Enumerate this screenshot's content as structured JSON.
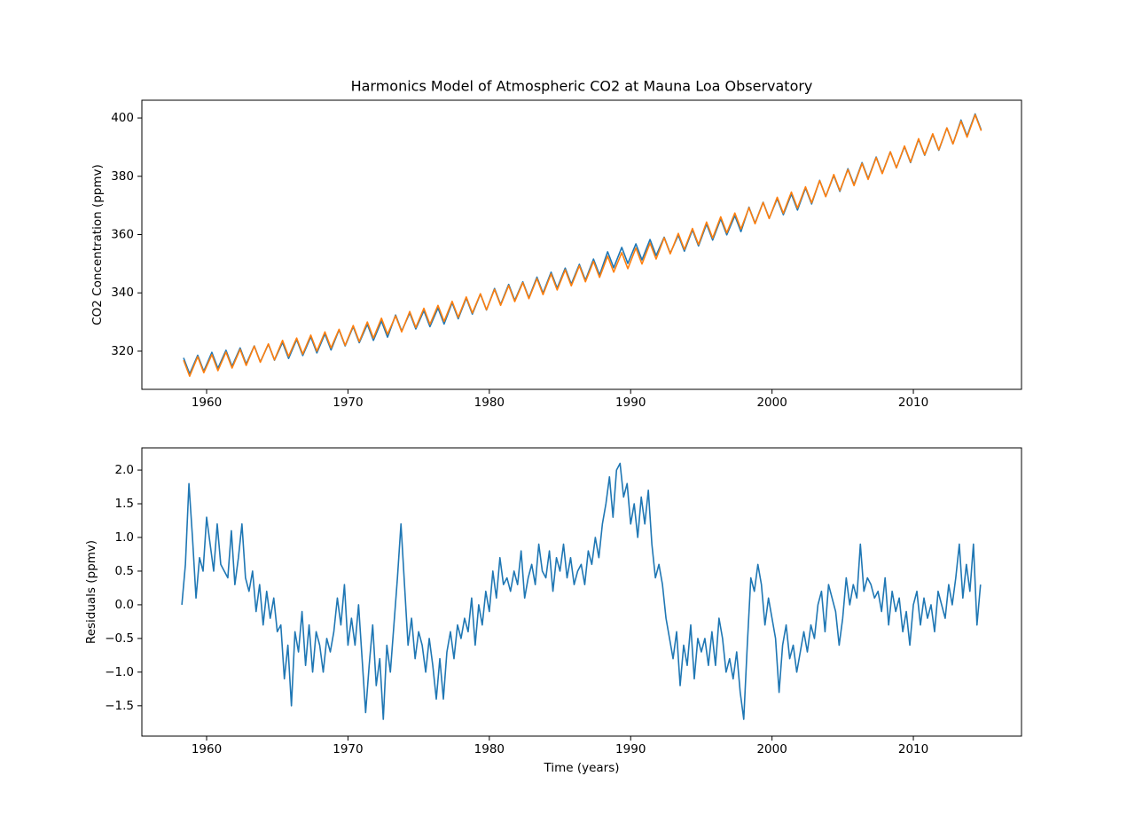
{
  "chart_data": [
    {
      "type": "line",
      "title": "Harmonics Model of Atmospheric CO2 at Mauna Loa Observatory",
      "ylabel": "CO2 Concentration (ppmv)",
      "x": [
        1958.37,
        1958.8,
        1959.37,
        1959.8,
        1960.37,
        1960.8,
        1961.37,
        1961.8,
        1962.37,
        1962.8,
        1963.37,
        1963.8,
        1964.37,
        1964.8,
        1965.37,
        1965.8,
        1966.37,
        1966.8,
        1967.37,
        1967.8,
        1968.37,
        1968.8,
        1969.37,
        1969.8,
        1970.37,
        1970.8,
        1971.37,
        1971.8,
        1972.37,
        1972.8,
        1973.37,
        1973.8,
        1974.37,
        1974.8,
        1975.37,
        1975.8,
        1976.37,
        1976.8,
        1977.37,
        1977.8,
        1978.37,
        1978.8,
        1979.37,
        1979.8,
        1980.37,
        1980.8,
        1981.37,
        1981.8,
        1982.37,
        1982.8,
        1983.37,
        1983.8,
        1984.37,
        1984.8,
        1985.37,
        1985.8,
        1986.37,
        1986.8,
        1987.37,
        1987.8,
        1988.37,
        1988.8,
        1989.37,
        1989.8,
        1990.37,
        1990.8,
        1991.37,
        1991.8,
        1992.37,
        1992.8,
        1993.37,
        1993.8,
        1994.37,
        1994.8,
        1995.37,
        1995.8,
        1996.37,
        1996.8,
        1997.37,
        1997.8,
        1998.37,
        1998.8,
        1999.37,
        1999.8,
        2000.37,
        2000.8,
        2001.37,
        2001.8,
        2002.37,
        2002.8,
        2003.37,
        2003.8,
        2004.37,
        2004.8,
        2005.37,
        2005.8,
        2006.37,
        2006.8,
        2007.37,
        2007.8,
        2008.37,
        2008.8,
        2009.37,
        2009.8,
        2010.37,
        2010.8,
        2011.37,
        2011.8,
        2012.37,
        2012.8,
        2013.37,
        2013.8,
        2014.37,
        2014.8
      ],
      "series": [
        {
          "color": "#1f77b4",
          "values": [
            317.7,
            312.2,
            318.6,
            313.1,
            319.6,
            314.1,
            320.3,
            314.8,
            321.1,
            315.6,
            321.8,
            316.3,
            322.4,
            316.9,
            323.0,
            317.5,
            324.0,
            318.5,
            324.9,
            319.4,
            325.9,
            320.4,
            327.3,
            321.8,
            328.4,
            322.9,
            329.2,
            323.7,
            330.3,
            324.8,
            332.4,
            326.9,
            333.1,
            327.6,
            333.9,
            328.4,
            334.8,
            329.3,
            336.6,
            331.1,
            338.2,
            332.7,
            339.6,
            334.1,
            341.5,
            336.0,
            342.9,
            337.4,
            343.8,
            338.3,
            345.4,
            339.9,
            347.1,
            341.6,
            348.5,
            343.0,
            349.8,
            344.3,
            351.6,
            346.1,
            354.1,
            348.6,
            355.6,
            350.1,
            356.8,
            351.3,
            358.3,
            352.8,
            359.1,
            353.6,
            359.8,
            354.3,
            361.6,
            356.1,
            363.6,
            358.1,
            365.4,
            359.9,
            366.5,
            361.0,
            369.4,
            363.9,
            371.1,
            365.6,
            372.3,
            366.8,
            373.9,
            368.4,
            376.0,
            370.5,
            378.6,
            373.1,
            380.3,
            374.8,
            382.6,
            377.1,
            384.7,
            379.2,
            386.6,
            381.1,
            388.4,
            382.9,
            390.2,
            384.7,
            392.7,
            387.2,
            394.4,
            388.9,
            396.6,
            391.1,
            399.3,
            393.8,
            401.4,
            395.9
          ]
        },
        {
          "color": "#ff7f0e",
          "values": [
            316.9,
            311.4,
            318.1,
            312.6,
            318.8,
            313.3,
            319.7,
            314.2,
            320.6,
            315.1,
            321.7,
            316.2,
            322.5,
            317.0,
            323.7,
            318.2,
            324.5,
            319.0,
            325.5,
            320.0,
            326.6,
            321.1,
            327.5,
            322.0,
            328.8,
            323.3,
            330.0,
            324.5,
            331.3,
            325.8,
            332.1,
            326.6,
            333.6,
            328.1,
            334.7,
            329.2,
            335.7,
            330.2,
            337.1,
            331.6,
            338.6,
            333.1,
            339.7,
            334.2,
            341.2,
            335.7,
            342.5,
            337.0,
            343.5,
            338.0,
            344.9,
            339.4,
            346.5,
            341.0,
            347.9,
            342.4,
            349.3,
            343.8,
            350.8,
            345.3,
            352.6,
            347.1,
            353.8,
            348.3,
            355.4,
            349.9,
            357.1,
            351.6,
            358.9,
            353.4,
            360.4,
            354.9,
            362.1,
            356.6,
            364.3,
            358.8,
            366.1,
            360.6,
            367.4,
            361.9,
            369.2,
            363.7,
            371.0,
            365.5,
            372.8,
            367.3,
            374.6,
            369.1,
            376.4,
            370.9,
            378.5,
            373.0,
            380.6,
            375.1,
            382.3,
            376.8,
            384.4,
            378.9,
            386.4,
            380.9,
            388.4,
            382.9,
            390.4,
            384.9,
            392.9,
            387.4,
            394.6,
            389.1,
            396.6,
            391.1,
            398.9,
            393.4,
            401.1,
            395.6
          ]
        }
      ],
      "xlim": [
        1955.42,
        2017.65
      ],
      "xticks": [
        1960,
        1970,
        1980,
        1990,
        2000,
        2010
      ],
      "ylim": [
        306.9,
        406.1
      ],
      "yticks": [
        320,
        340,
        360,
        380,
        400
      ]
    },
    {
      "type": "line",
      "xlabel": "Time (years)",
      "ylabel": "Residuals (ppmv)",
      "x": [
        1958.25,
        1958.5,
        1958.75,
        1959.0,
        1959.25,
        1959.5,
        1959.75,
        1960.0,
        1960.25,
        1960.5,
        1960.75,
        1961.0,
        1961.25,
        1961.5,
        1961.75,
        1962.0,
        1962.25,
        1962.5,
        1962.75,
        1963.0,
        1963.25,
        1963.5,
        1963.75,
        1964.0,
        1964.25,
        1964.5,
        1964.75,
        1965.0,
        1965.25,
        1965.5,
        1965.75,
        1966.0,
        1966.25,
        1966.5,
        1966.75,
        1967.0,
        1967.25,
        1967.5,
        1967.75,
        1968.0,
        1968.25,
        1968.5,
        1968.75,
        1969.0,
        1969.25,
        1969.5,
        1969.75,
        1970.0,
        1970.25,
        1970.5,
        1970.75,
        1971.0,
        1971.25,
        1971.5,
        1971.75,
        1972.0,
        1972.25,
        1972.5,
        1972.75,
        1973.0,
        1973.25,
        1973.5,
        1973.75,
        1974.0,
        1974.25,
        1974.5,
        1974.75,
        1975.0,
        1975.25,
        1975.5,
        1975.75,
        1976.0,
        1976.25,
        1976.5,
        1976.75,
        1977.0,
        1977.25,
        1977.5,
        1977.75,
        1978.0,
        1978.25,
        1978.5,
        1978.75,
        1979.0,
        1979.25,
        1979.5,
        1979.75,
        1980.0,
        1980.25,
        1980.5,
        1980.75,
        1981.0,
        1981.25,
        1981.5,
        1981.75,
        1982.0,
        1982.25,
        1982.5,
        1982.75,
        1983.0,
        1983.25,
        1983.5,
        1983.75,
        1984.0,
        1984.25,
        1984.5,
        1984.75,
        1985.0,
        1985.25,
        1985.5,
        1985.75,
        1986.0,
        1986.25,
        1986.5,
        1986.75,
        1987.0,
        1987.25,
        1987.5,
        1987.75,
        1988.0,
        1988.25,
        1988.5,
        1988.75,
        1989.0,
        1989.25,
        1989.5,
        1989.75,
        1990.0,
        1990.25,
        1990.5,
        1990.75,
        1991.0,
        1991.25,
        1991.5,
        1991.75,
        1992.0,
        1992.25,
        1992.5,
        1992.75,
        1993.0,
        1993.25,
        1993.5,
        1993.75,
        1994.0,
        1994.25,
        1994.5,
        1994.75,
        1995.0,
        1995.25,
        1995.5,
        1995.75,
        1996.0,
        1996.25,
        1996.5,
        1996.75,
        1997.0,
        1997.25,
        1997.5,
        1997.75,
        1998.0,
        1998.25,
        1998.5,
        1998.75,
        1999.0,
        1999.25,
        1999.5,
        1999.75,
        2000.0,
        2000.25,
        2000.5,
        2000.75,
        2001.0,
        2001.25,
        2001.5,
        2001.75,
        2002.0,
        2002.25,
        2002.5,
        2002.75,
        2003.0,
        2003.25,
        2003.5,
        2003.75,
        2004.0,
        2004.25,
        2004.5,
        2004.75,
        2005.0,
        2005.25,
        2005.5,
        2005.75,
        2006.0,
        2006.25,
        2006.5,
        2006.75,
        2007.0,
        2007.25,
        2007.5,
        2007.75,
        2008.0,
        2008.25,
        2008.5,
        2008.75,
        2009.0,
        2009.25,
        2009.5,
        2009.75,
        2010.0,
        2010.25,
        2010.5,
        2010.75,
        2011.0,
        2011.25,
        2011.5,
        2011.75,
        2012.0,
        2012.25,
        2012.5,
        2012.75,
        2013.0,
        2013.25,
        2013.5,
        2013.75,
        2014.0,
        2014.25,
        2014.5,
        2014.75
      ],
      "series": [
        {
          "color": "#1f77b4",
          "values": [
            0.0,
            0.6,
            1.8,
            1.0,
            0.1,
            0.7,
            0.5,
            1.3,
            0.9,
            0.5,
            1.2,
            0.6,
            0.5,
            0.4,
            1.1,
            0.3,
            0.7,
            1.2,
            0.4,
            0.2,
            0.5,
            -0.1,
            0.3,
            -0.3,
            0.2,
            -0.2,
            0.1,
            -0.4,
            -0.3,
            -1.1,
            -0.6,
            -1.5,
            -0.4,
            -0.7,
            -0.1,
            -0.9,
            -0.3,
            -1.0,
            -0.4,
            -0.6,
            -1.0,
            -0.5,
            -0.7,
            -0.4,
            0.1,
            -0.3,
            0.3,
            -0.6,
            -0.2,
            -0.6,
            0.0,
            -0.8,
            -1.6,
            -0.9,
            -0.3,
            -1.2,
            -0.8,
            -1.7,
            -0.6,
            -1.0,
            -0.3,
            0.4,
            1.2,
            0.3,
            -0.6,
            -0.2,
            -0.8,
            -0.4,
            -0.6,
            -1.0,
            -0.5,
            -0.9,
            -1.4,
            -0.8,
            -1.4,
            -0.7,
            -0.4,
            -0.8,
            -0.3,
            -0.5,
            -0.2,
            -0.4,
            0.1,
            -0.6,
            0.0,
            -0.3,
            0.2,
            -0.1,
            0.5,
            0.1,
            0.7,
            0.3,
            0.4,
            0.2,
            0.5,
            0.3,
            0.8,
            0.1,
            0.4,
            0.6,
            0.3,
            0.9,
            0.5,
            0.4,
            0.8,
            0.2,
            0.7,
            0.5,
            0.9,
            0.4,
            0.7,
            0.3,
            0.5,
            0.6,
            0.3,
            0.8,
            0.6,
            1.0,
            0.7,
            1.2,
            1.5,
            1.9,
            1.3,
            2.0,
            2.1,
            1.6,
            1.8,
            1.2,
            1.5,
            1.0,
            1.6,
            1.2,
            1.7,
            0.9,
            0.4,
            0.6,
            0.3,
            -0.2,
            -0.5,
            -0.8,
            -0.4,
            -1.2,
            -0.6,
            -0.9,
            -0.3,
            -1.1,
            -0.5,
            -0.7,
            -0.5,
            -0.9,
            -0.4,
            -0.9,
            -0.2,
            -0.5,
            -1.0,
            -0.8,
            -1.1,
            -0.7,
            -1.3,
            -1.7,
            -0.6,
            0.4,
            0.2,
            0.6,
            0.3,
            -0.3,
            0.1,
            -0.2,
            -0.5,
            -1.3,
            -0.6,
            -0.3,
            -0.8,
            -0.6,
            -1.0,
            -0.7,
            -0.4,
            -0.7,
            -0.3,
            -0.5,
            0.0,
            0.2,
            -0.4,
            0.3,
            0.1,
            -0.1,
            -0.6,
            -0.2,
            0.4,
            0.0,
            0.3,
            0.1,
            0.9,
            0.2,
            0.4,
            0.3,
            0.1,
            0.2,
            -0.1,
            0.4,
            -0.3,
            0.2,
            -0.1,
            0.1,
            -0.4,
            -0.1,
            -0.6,
            0.0,
            0.2,
            -0.3,
            0.1,
            -0.2,
            0.0,
            -0.4,
            0.2,
            0.0,
            -0.2,
            0.3,
            0.0,
            0.4,
            0.9,
            0.1,
            0.6,
            0.2,
            0.9,
            -0.3,
            0.3
          ]
        }
      ],
      "xlim": [
        1955.42,
        2017.65
      ],
      "xticks": [
        1960,
        1970,
        1980,
        1990,
        2000,
        2010
      ],
      "ylim": [
        -1.95,
        2.33
      ],
      "yticks": [
        {
          "value": -1.5,
          "label": "−1.5"
        },
        {
          "value": -1,
          "label": "−1.0"
        },
        {
          "value": -0.5,
          "label": "−0.5"
        },
        {
          "value": 0,
          "label": "0.0"
        },
        0.5,
        {
          "value": 1,
          "label": "1.0"
        },
        1.5,
        {
          "value": 2,
          "label": "2.0"
        }
      ]
    }
  ]
}
